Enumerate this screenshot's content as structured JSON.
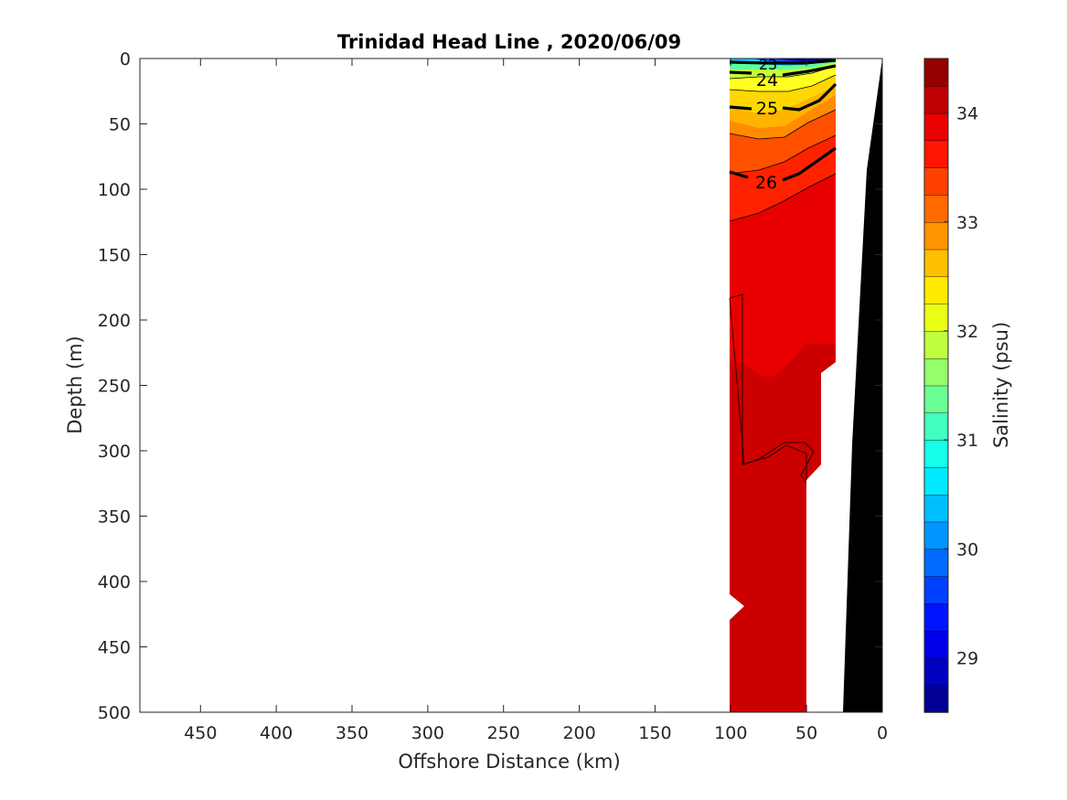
{
  "chart_data": {
    "type": "contour",
    "title": "Trinidad Head Line , 2020/06/09",
    "xlabel": "Offshore Distance (km)",
    "ylabel": "Depth (m)",
    "xlim": [
      490,
      0
    ],
    "ylim": [
      0,
      500
    ],
    "x_reversed": true,
    "y_reversed": true,
    "x_ticks": [
      "450",
      "400",
      "350",
      "300",
      "250",
      "200",
      "150",
      "100",
      "50",
      "0"
    ],
    "y_ticks": [
      "0",
      "50",
      "100",
      "150",
      "200",
      "250",
      "300",
      "350",
      "400",
      "450",
      "500"
    ],
    "variable": "Salinity",
    "colorbar": {
      "label": "Salinity (psu)",
      "range": [
        28.5,
        34.5
      ],
      "ticks": [
        "29",
        "30",
        "31",
        "32",
        "33",
        "34"
      ],
      "colormap": "jet",
      "levels": 24
    },
    "station_range_km": [
      100,
      30
    ],
    "salinity_profile": [
      {
        "depth": 0,
        "value": 29.0
      },
      {
        "depth": 5,
        "value": 30.0
      },
      {
        "depth": 10,
        "value": 31.5
      },
      {
        "depth": 20,
        "value": 32.0
      },
      {
        "depth": 40,
        "value": 32.4
      },
      {
        "depth": 60,
        "value": 32.8
      },
      {
        "depth": 75,
        "value": 33.2
      },
      {
        "depth": 90,
        "value": 33.6
      },
      {
        "depth": 120,
        "value": 33.8
      },
      {
        "depth": 230,
        "value": 34.0
      },
      {
        "depth": 500,
        "value": 34.2
      }
    ],
    "density_contours": [
      {
        "label": "23",
        "depth_km_x": 85,
        "depth_m": 3
      },
      {
        "label": "24",
        "depth_km_x": 88,
        "depth_m": 16
      },
      {
        "label": "25",
        "depth_km_x": 86,
        "depth_m": 37
      },
      {
        "label": "26",
        "depth_km_x": 86,
        "depth_m": 95
      }
    ],
    "bathymetry": "black wedge from 0 km at surface to ~25 km at 500 m",
    "colors": {
      "bathymetry": "#000000",
      "deep_water": "#cc0000",
      "mid_water": "#ee1c00",
      "thermocline": "#ff8c00",
      "surface": "#ffff20"
    }
  }
}
